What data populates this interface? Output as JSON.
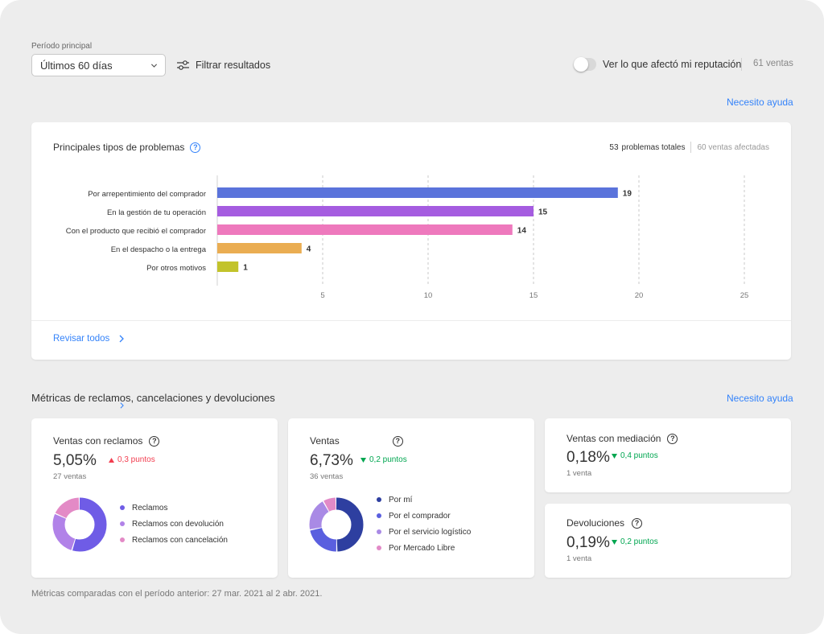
{
  "filters": {
    "period_label": "Período principal",
    "period_value": "Últimos 60 días",
    "filter_label": "Filtrar resultados",
    "toggle_label": "Ver lo que afectó mi reputación",
    "toggle_on": false,
    "sales_count": "61 ventas"
  },
  "help_link": "Necesito ayuda",
  "problems_card": {
    "title": "Principales tipos de problemas",
    "total_num": "53",
    "total_label": "problemas totales",
    "affected_label": "60 ventas afectadas",
    "review_link": "Revisar todos"
  },
  "chart_data": {
    "type": "bar",
    "orientation": "horizontal",
    "categories": [
      "Por arrepentimiento del comprador",
      "En la gestión de tu operación",
      "Con el producto que recibió el comprador",
      "En el despacho o la entrega",
      "Por otros motivos"
    ],
    "values": [
      19,
      15,
      14,
      4,
      1
    ],
    "colors": [
      "#5a73db",
      "#a55ce0",
      "#ee79bd",
      "#eaad52",
      "#c2c32b"
    ],
    "xticks": [
      5,
      10,
      15,
      20,
      25
    ],
    "xlim": [
      0,
      25
    ],
    "grid": "vertical dashed"
  },
  "metrics": {
    "title": "Métricas de reclamos, cancelaciones y devoluciones",
    "claims": {
      "title": "Ventas con reclamos",
      "value": "5,05%",
      "delta": "0,3 puntos",
      "delta_direction": "up",
      "sub": "27 ventas",
      "donut": [
        {
          "label": "Reclamos",
          "fraction": 0.55,
          "color": "#6f5ce6"
        },
        {
          "label": "Reclamos con devolución",
          "fraction": 0.27,
          "color": "#b182e8"
        },
        {
          "label": "Reclamos con cancelación",
          "fraction": 0.18,
          "color": "#e38ac6"
        }
      ]
    },
    "sales": {
      "title": "Ventas",
      "value": "6,73%",
      "delta": "0,2 puntos",
      "delta_direction": "down",
      "sub": "36 ventas",
      "donut": [
        {
          "label": "Por mí",
          "fraction": 0.5,
          "color": "#2e3fa0"
        },
        {
          "label": "Por el comprador",
          "fraction": 0.22,
          "color": "#5a5fdf"
        },
        {
          "label": "Por el servicio logístico",
          "fraction": 0.2,
          "color": "#a98ae5"
        },
        {
          "label": "Por Mercado Libre",
          "fraction": 0.08,
          "color": "#e28ac7"
        }
      ]
    },
    "mediation": {
      "title": "Ventas con mediación",
      "value": "0,18%",
      "delta": "0,4 puntos",
      "delta_direction": "down",
      "sub": "1 venta"
    },
    "returns": {
      "title": "Devoluciones",
      "value": "0,19%",
      "delta": "0,2 puntos",
      "delta_direction": "down",
      "sub": "1 venta"
    }
  },
  "footnote": "Métricas comparadas con el período anterior: 27 mar. 2021 al 2 abr. 2021."
}
